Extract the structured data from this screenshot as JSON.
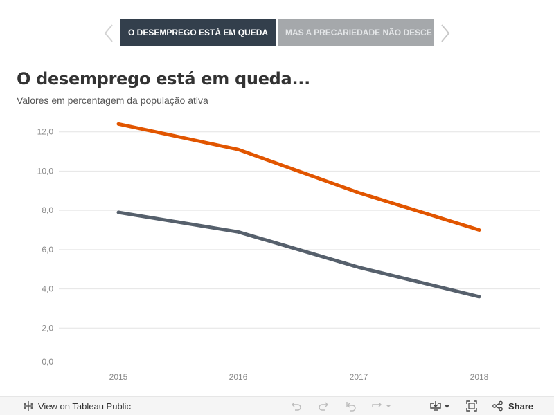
{
  "story": {
    "tabs": [
      {
        "label": "O DESEMPREGO ESTÁ EM QUEDA"
      },
      {
        "label": "MAS A PRECARIEDADE NÃO DESCE"
      }
    ]
  },
  "chart": {
    "title": "O desemprego está em queda...",
    "subtitle": "Valores em percentagem da população ativa"
  },
  "chart_data": {
    "type": "line",
    "title": "O desemprego está em queda...",
    "subtitle": "Valores em percentagem da população ativa",
    "x": [
      "2015",
      "2016",
      "2017",
      "2018"
    ],
    "xlabel": "",
    "ylabel": "",
    "ylim": [
      0,
      12.8
    ],
    "yticks": [
      "0,0",
      "2,0",
      "4,0",
      "6,0",
      "8,0",
      "10,0",
      "12,0"
    ],
    "grid": true,
    "legend": "none",
    "series": [
      {
        "values": [
          12.4,
          11.1,
          8.9,
          7.0
        ],
        "color": "#e15500"
      },
      {
        "values": [
          7.9,
          6.9,
          5.1,
          3.6
        ],
        "color": "#56606c"
      }
    ]
  },
  "toolbar": {
    "view_label": "View on Tableau Public",
    "share_label": "Share",
    "icons": [
      "tableau-icon",
      "undo-icon",
      "redo-icon",
      "revert-icon",
      "refresh-icon",
      "download-icon",
      "fullscreen-icon",
      "share-icon"
    ]
  }
}
